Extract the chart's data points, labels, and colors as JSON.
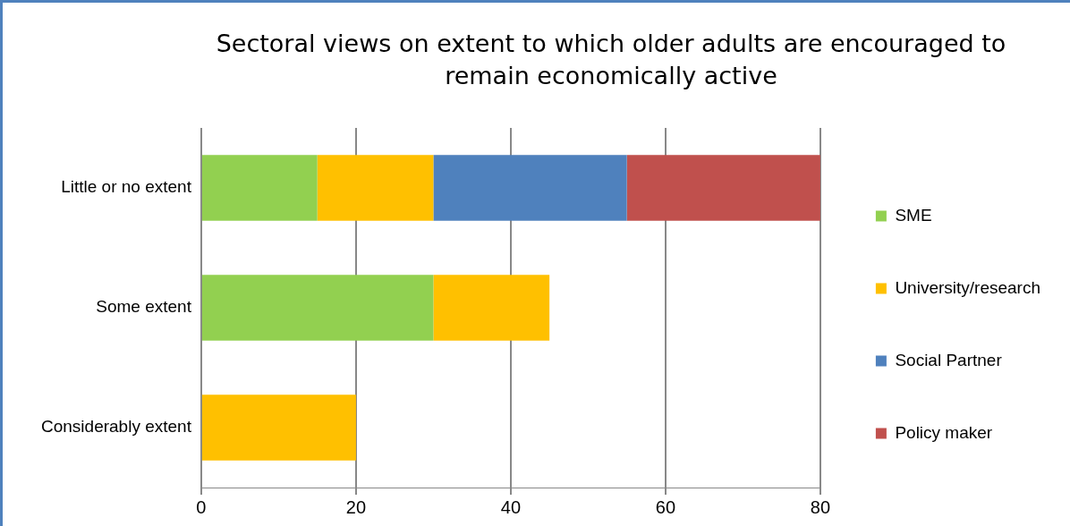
{
  "chart_data": {
    "type": "bar",
    "title": "Sectoral views on extent to which older adults are encouraged to remain economically active",
    "orientation": "horizontal",
    "stacked": true,
    "categories": [
      "Little or no extent",
      "Some extent",
      "Considerably extent"
    ],
    "series": [
      {
        "name": "SME",
        "color": "#92d050",
        "values": [
          15,
          30,
          0
        ]
      },
      {
        "name": "University/research",
        "color": "#ffc000",
        "values": [
          15,
          15,
          20
        ]
      },
      {
        "name": "Social Partner",
        "color": "#4f81bd",
        "values": [
          25,
          0,
          0
        ]
      },
      {
        "name": "Policy maker",
        "color": "#c0504d",
        "values": [
          25,
          0,
          0
        ]
      }
    ],
    "xlim": [
      0,
      80
    ],
    "xticks": [
      0,
      20,
      40,
      60,
      80
    ],
    "grid": "x",
    "legend": "right"
  }
}
